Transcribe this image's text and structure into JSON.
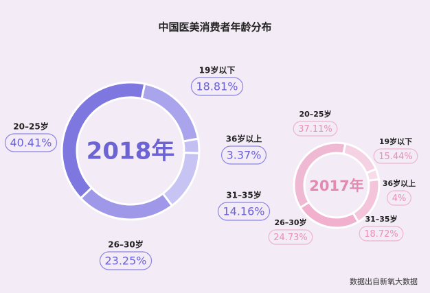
{
  "title": "中国医美消费者年龄分布",
  "source": "数据出自新氧大数据",
  "chart_data": [
    {
      "type": "pie",
      "center_label": "2018年",
      "categories": [
        "19岁以下",
        "36岁以上",
        "31–35岁",
        "26–30岁",
        "20–25岁"
      ],
      "values": [
        18.81,
        3.37,
        14.16,
        23.25,
        40.41
      ],
      "value_labels": [
        "18.81%",
        "3.37%",
        "14.16%",
        "23.25%",
        "40.41%"
      ],
      "colors": [
        "#aaa4ec",
        "#c3bff3",
        "#c7c3f2",
        "#9f98e8",
        "#7f77e0"
      ]
    },
    {
      "type": "pie",
      "center_label": "2017年",
      "categories": [
        "19岁以下",
        "36岁以上",
        "31–35岁",
        "26–30岁",
        "20–25岁"
      ],
      "values": [
        15.44,
        4,
        18.72,
        24.73,
        37.11
      ],
      "value_labels": [
        "15.44%",
        "4%",
        "18.72%",
        "24.73%",
        "37.11%"
      ],
      "colors": [
        "#f5d2e3",
        "#f7dbe8",
        "#f3c4da",
        "#f0b0ce",
        "#efb9d3"
      ]
    }
  ]
}
